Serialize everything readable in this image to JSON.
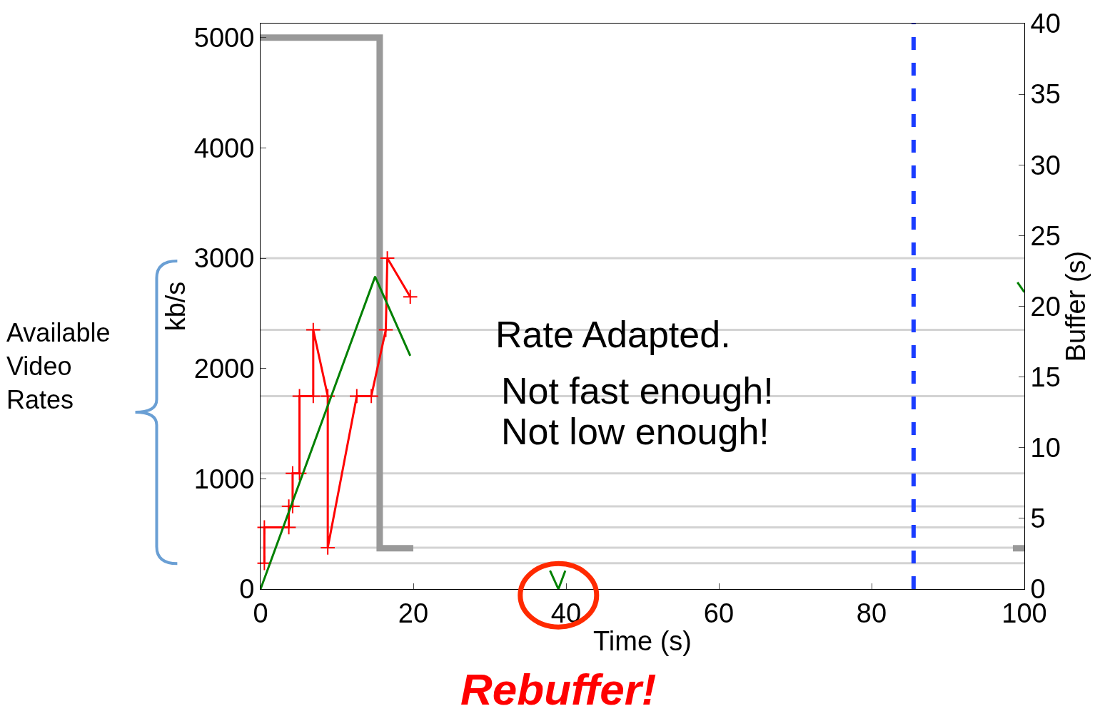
{
  "chart_data": {
    "type": "line",
    "xlabel": "Time (s)",
    "ylabel": "kb/s",
    "y2label": "Buffer (s)",
    "xlim": [
      0,
      100
    ],
    "xticks": [
      0,
      20,
      40,
      60,
      80,
      100
    ],
    "ylim": [
      0,
      5128
    ],
    "yticks": [
      0,
      1000,
      2000,
      3000,
      4000,
      5000
    ],
    "y2lim": [
      0,
      40
    ],
    "y2ticks": [
      0,
      5,
      10,
      15,
      20,
      25,
      30,
      35,
      40
    ],
    "grid": false,
    "series": [
      {
        "color": "#999999",
        "x": [
          0,
          15.6,
          15.6,
          20,
          60,
          98.5,
          100
        ],
        "values": [
          5000,
          5000,
          370,
          370,
          null,
          370,
          370
        ]
      },
      {
        "color": "#ff0000",
        "marker": "cross",
        "x": [
          0.5,
          0.5,
          3.7,
          3.7,
          4.2,
          4.2,
          5.1,
          5.1,
          6.9,
          6.9,
          8.8,
          8.8,
          12.6,
          14.5,
          16.4,
          16.6,
          19.6
        ],
        "values": [
          235,
          560,
          560,
          750,
          750,
          1050,
          1050,
          1750,
          1750,
          2350,
          1750,
          375,
          1750,
          1750,
          2350,
          3000,
          2650
        ]
      },
      {
        "color": "#008000",
        "axis": "y2",
        "x": [
          0,
          15,
          19.6,
          30,
          37.9,
          39,
          39.9,
          60,
          99.1,
          100
        ],
        "values": [
          0,
          22.1,
          16.5,
          null,
          1.3,
          0,
          1.3,
          null,
          21.7,
          21
        ]
      }
    ],
    "ref_lines": [
      {
        "axis": "y",
        "value": 235,
        "color": "#d3d3d3"
      },
      {
        "axis": "y",
        "value": 375,
        "color": "#d3d3d3"
      },
      {
        "axis": "y",
        "value": 560,
        "color": "#d3d3d3"
      },
      {
        "axis": "y",
        "value": 750,
        "color": "#d3d3d3"
      },
      {
        "axis": "y",
        "value": 1050,
        "color": "#d3d3d3"
      },
      {
        "axis": "y",
        "value": 1750,
        "color": "#d3d3d3"
      },
      {
        "axis": "y",
        "value": 2350,
        "color": "#d3d3d3"
      },
      {
        "axis": "y",
        "value": 3000,
        "color": "#d3d3d3"
      },
      {
        "axis": "x",
        "value": 85.5,
        "color": "#1a3cff",
        "line_style": "dashed"
      }
    ],
    "annotations": [
      "Available\nVideo\nRates",
      "Rate Adapted.",
      "Not fast enough!",
      "Not low enough!",
      {
        "text": "Rebuffer!",
        "x": 39,
        "y": 0
      }
    ]
  }
}
